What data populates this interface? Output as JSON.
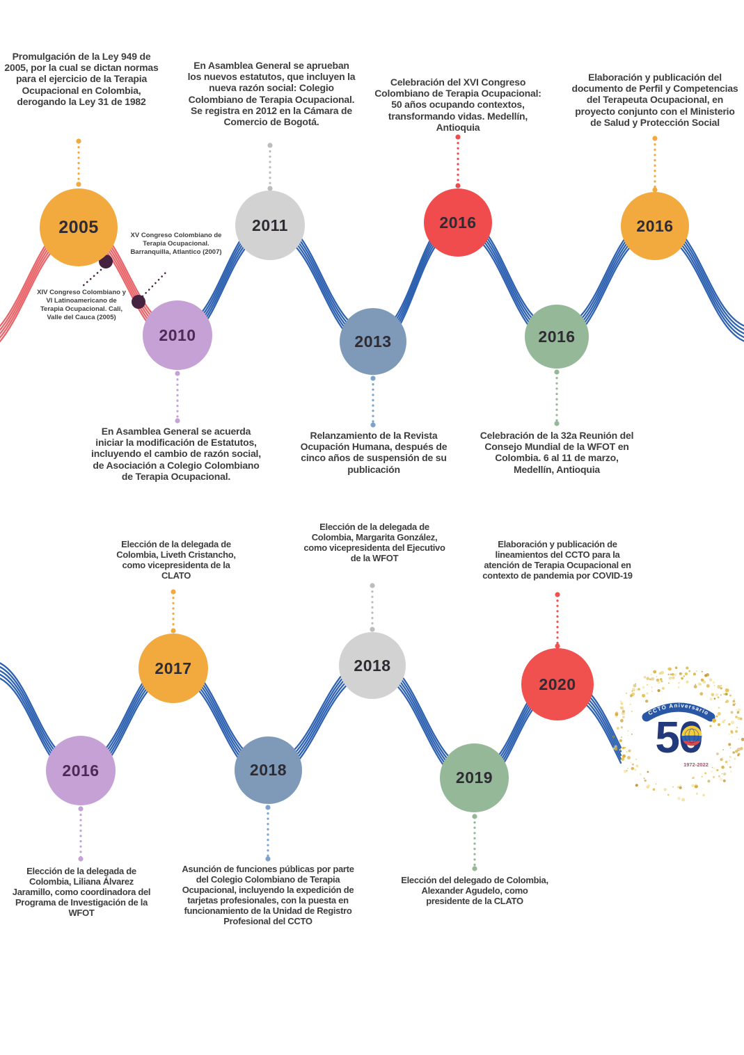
{
  "events": [
    {
      "year": "2005",
      "color": "#F2A93E",
      "description": "Promulgación de la Ley 949 de 2005, por la cual se dictan normas para el ejercicio de la Terapia Ocupacional en Colombia, derogando la Ley 31 de 1982"
    },
    {
      "year": "2010",
      "color": "#C5A1D6",
      "description": "En Asamblea General se acuerda iniciar la modificación de Estatutos, incluyendo el cambio de razón social, de Asociación a Colegio Colombiano de Terapia Ocupacional."
    },
    {
      "year": "2011",
      "color": "#D2D2D2",
      "description": "En Asamblea General se aprueban los nuevos estatutos, que incluyen la nueva razón social: Colegio Colombiano de Terapia Ocupacional. Se registra en 2012 en la Cámara de Comercio de Bogotá."
    },
    {
      "year": "2013",
      "color": "#7E9AB8",
      "description": "Relanzamiento de la Revista Ocupación Humana, después de cinco años de suspensión de su publicación"
    },
    {
      "year": "2016",
      "color": "#F04C4E",
      "description": "Celebración del XVI Congreso Colombiano de Terapia Ocupacional: 50 años ocupando contextos, transformando vidas. Medellín, Antioquia"
    },
    {
      "year": "2016",
      "color": "#95B899",
      "description": "Celebración de la 32a Reunión del Consejo Mundial de la WFOT en Colombia. 6 al 11 de marzo, Medellín, Antioquia"
    },
    {
      "year": "2016",
      "color": "#F2A93E",
      "description": "Elaboración y publicación del documento de Perfil y Competencias del Terapeuta Ocupacional, en proyecto conjunto con el Ministerio de Salud y Protección Social"
    },
    {
      "year": "2016",
      "color": "#C5A1D6",
      "description": "Elección de la delegada de Colombia, Liliana Álvarez Jaramillo, como coordinadora del Programa de Investigación de la WFOT"
    },
    {
      "year": "2017",
      "color": "#F2A93E",
      "description": "Elección de la delegada de Colombia, Liveth Cristancho, como vicepresidenta de la CLATO"
    },
    {
      "year": "2018",
      "color": "#7E9AB8",
      "description": "Asunción de funciones públicas por parte del Colegio Colombiano de Terapia Ocupacional, incluyendo la expedición de tarjetas profesionales, con la puesta en funcionamiento de la Unidad de Registro Profesional del CCTO"
    },
    {
      "year": "2018",
      "color": "#D2D2D2",
      "description": "Elección de la delegada de Colombia, Margarita González, como vicepresidenta del Ejecutivo de la WFOT"
    },
    {
      "year": "2019",
      "color": "#95B899",
      "description": "Elección del delegado de Colombia, Alexander Agudelo, como presidente de la CLATO"
    },
    {
      "year": "2020",
      "color": "#F0504E",
      "description": "Elaboración y publicación de lineamientos del CCTO para la atención de Terapia Ocupacional en contexto de pandemia por COVID-19"
    }
  ],
  "annotations": [
    {
      "text": "XV Congreso Colombiano de Terapia Ocupacional. Barranquilla, Atlantico (2007)"
    },
    {
      "text": "XIV Congreso Colombiano y VI Latinoamericano de Terapia Ocupacional. Cali, Valle del Cauca (2005)"
    }
  ],
  "logo": {
    "number": "50",
    "banner": "CCTO Aniversario",
    "years": "1972-2022"
  },
  "colors": {
    "orange": "#F2A93E",
    "purple": "#C5A1D6",
    "gray": "#D2D2D2",
    "steel_blue": "#7E9AB8",
    "red": "#F04C4E",
    "green": "#95B899",
    "wave_blue": "#2E62B1",
    "wave_red": "#E8666B",
    "annotation_dot": "#45223F",
    "gold": "#D9B13C",
    "navy": "#22397B",
    "text": "#3E3E3E"
  }
}
